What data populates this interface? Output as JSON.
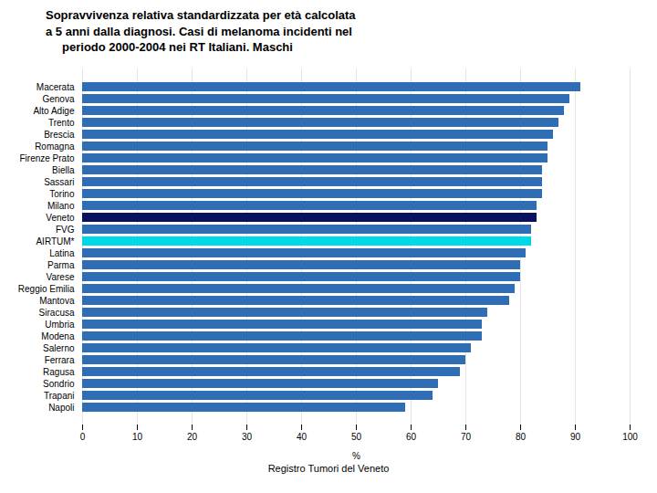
{
  "chart_data": {
    "type": "bar",
    "orientation": "horizontal",
    "title": "Sopravvivenza relativa standardizzata per età calcolata\na 5 anni dalla diagnosi. Casi di melanoma incidenti nel\n     periodo 2000-2004 nei RT Italiani. Maschi",
    "xlabel": "%",
    "footer": "Registro Tumori del Veneto",
    "categories": [
      "Macerata",
      "Genova",
      "Alto Adige",
      "Trento",
      "Brescia",
      "Romagna",
      "Firenze Prato",
      "Biella",
      "Sassari",
      "Torino",
      "Milano",
      "Veneto",
      "FVG",
      "AIRTUM*",
      "Latina",
      "Parma",
      "Varese",
      "Reggio Emilia",
      "Mantova",
      "Siracusa",
      "Umbria",
      "Modena",
      "Salerno",
      "Ferrara",
      "Ragusa",
      "Sondrio",
      "Trapani",
      "Napoli"
    ],
    "values": [
      91,
      89,
      88,
      87,
      86,
      85,
      85,
      84,
      84,
      84,
      83,
      83,
      82,
      82,
      81,
      80,
      80,
      79,
      78,
      74,
      73,
      73,
      71,
      70,
      69,
      65,
      64,
      59
    ],
    "colors": [
      "#2f6db5",
      "#2f6db5",
      "#2f6db5",
      "#2f6db5",
      "#2f6db5",
      "#2f6db5",
      "#2f6db5",
      "#2f6db5",
      "#2f6db5",
      "#2f6db5",
      "#2f6db5",
      "#0a1260",
      "#2f6db5",
      "#00d8e8",
      "#2f6db5",
      "#2f6db5",
      "#2f6db5",
      "#2f6db5",
      "#2f6db5",
      "#2f6db5",
      "#2f6db5",
      "#2f6db5",
      "#2f6db5",
      "#2f6db5",
      "#2f6db5",
      "#2f6db5",
      "#2f6db5",
      "#2f6db5"
    ],
    "xlim": [
      0,
      100
    ],
    "xticks": [
      0,
      10,
      20,
      30,
      40,
      50,
      60,
      70,
      80,
      90,
      100
    ],
    "grid": true
  }
}
